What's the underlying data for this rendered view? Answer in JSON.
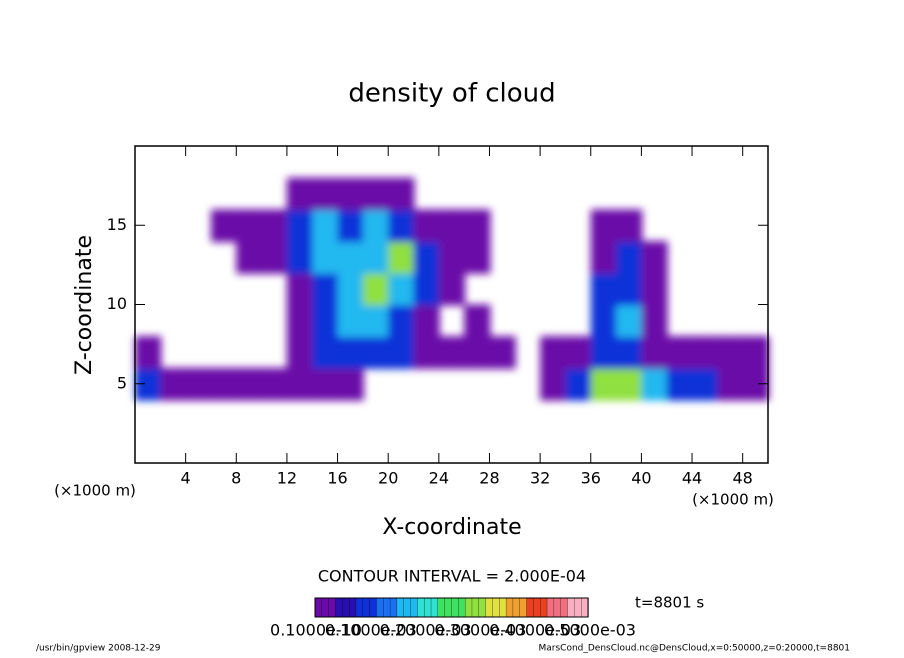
{
  "chart_data": {
    "type": "contour",
    "title": "density of cloud",
    "xlabel": "X-coordinate",
    "ylabel": "Z-coordinate",
    "xunit": "(×1000 m)",
    "yunit": "(×1000 m)",
    "xlim": [
      0,
      50
    ],
    "ylim": [
      0,
      20
    ],
    "xticks": [
      4,
      8,
      12,
      16,
      20,
      24,
      28,
      32,
      36,
      40,
      44,
      48
    ],
    "yticks": [
      5,
      10,
      15
    ],
    "x": [
      1,
      3,
      5,
      7,
      9,
      11,
      13,
      15,
      17,
      19,
      21,
      23,
      25,
      27,
      29,
      31,
      33,
      35,
      37,
      39,
      41,
      43,
      45,
      47,
      49
    ],
    "z": [
      1,
      3,
      5,
      7,
      9,
      11,
      13,
      15,
      17,
      19
    ],
    "values": [
      [
        0,
        0,
        0,
        0,
        0,
        0,
        0,
        0,
        0,
        0,
        0,
        0,
        0,
        0,
        0,
        0,
        0,
        0,
        0,
        0,
        0,
        0,
        0,
        0,
        0
      ],
      [
        0,
        0,
        0,
        0,
        0,
        0,
        0,
        0,
        0,
        0,
        0,
        0,
        0,
        0,
        0,
        0,
        0,
        0,
        0,
        0,
        0,
        0,
        0,
        0,
        0
      ],
      [
        0.0001,
        3e-05,
        3e-05,
        3e-05,
        3e-05,
        3e-05,
        3e-05,
        3e-05,
        3e-05,
        0,
        0,
        0,
        0,
        0,
        0,
        0,
        3e-05,
        0.0001,
        0.0003,
        0.0003,
        0.0002,
        0.0001,
        0.0001,
        3e-05,
        3e-05
      ],
      [
        3e-05,
        0,
        0,
        0,
        0,
        0,
        3e-05,
        0.0001,
        0.0001,
        0.0001,
        0.0001,
        3e-05,
        3e-05,
        3e-05,
        3e-05,
        0,
        3e-05,
        3e-05,
        0.0001,
        0.0001,
        3e-05,
        3e-05,
        3e-05,
        3e-05,
        3e-05
      ],
      [
        0,
        0,
        0,
        0,
        0,
        0,
        3e-05,
        0.0001,
        0.0002,
        0.0002,
        0.0001,
        3e-05,
        0,
        3e-05,
        0,
        0,
        0,
        0,
        0.0001,
        0.0002,
        3e-05,
        0,
        0,
        0,
        0
      ],
      [
        0,
        0,
        0,
        0,
        0,
        0,
        3e-05,
        0.0001,
        0.0002,
        0.0003,
        0.0002,
        0.0001,
        3e-05,
        0,
        0,
        0,
        0,
        0,
        0.0001,
        0.0001,
        3e-05,
        0,
        0,
        0,
        0
      ],
      [
        0,
        0,
        0,
        0,
        3e-05,
        3e-05,
        0.0001,
        0.0002,
        0.0002,
        0.0002,
        0.0003,
        0.0001,
        3e-05,
        3e-05,
        0,
        0,
        0,
        0,
        3e-05,
        0.0001,
        3e-05,
        0,
        0,
        0,
        0
      ],
      [
        0,
        0,
        0,
        3e-05,
        3e-05,
        3e-05,
        0.0001,
        0.0002,
        0.0001,
        0.0002,
        0.0001,
        3e-05,
        3e-05,
        3e-05,
        0,
        0,
        0,
        0,
        3e-05,
        3e-05,
        0,
        0,
        0,
        0,
        0
      ],
      [
        0,
        0,
        0,
        0,
        0,
        0,
        3e-05,
        3e-05,
        3e-05,
        3e-05,
        3e-05,
        0,
        0,
        0,
        0,
        0,
        0,
        0,
        0,
        0,
        0,
        0,
        0,
        0,
        0
      ],
      [
        0,
        0,
        0,
        0,
        0,
        0,
        0,
        0,
        0,
        0,
        0,
        0,
        0,
        0,
        0,
        0,
        0,
        0,
        0,
        0,
        0,
        0,
        0,
        0,
        0
      ]
    ],
    "clim": [
      0,
      0.00055
    ],
    "colormap": [
      "#6a0aa8",
      "#2a0fb0",
      "#1030d8",
      "#1a70f0",
      "#20b8f0",
      "#30e0d0",
      "#40e060",
      "#90e040",
      "#e0e040",
      "#f0a030",
      "#e84020",
      "#f07080",
      "#f8b0c0"
    ],
    "contour_interval": "CONTOUR INTERVAL = 2.000E-04",
    "colorbar_labels": [
      "0.1000e-10",
      "0.1000e-03",
      "0.2000e-03",
      "0.3000e-03",
      "0.4000e-03",
      "0.5000e-03"
    ],
    "time": "t=8801 s",
    "footer_left": "/usr/bin/gpview   2008-12-29",
    "footer_right": "MarsCond_DensCloud.nc@DensCloud,x=0:50000,z=0:20000,t=8801"
  }
}
